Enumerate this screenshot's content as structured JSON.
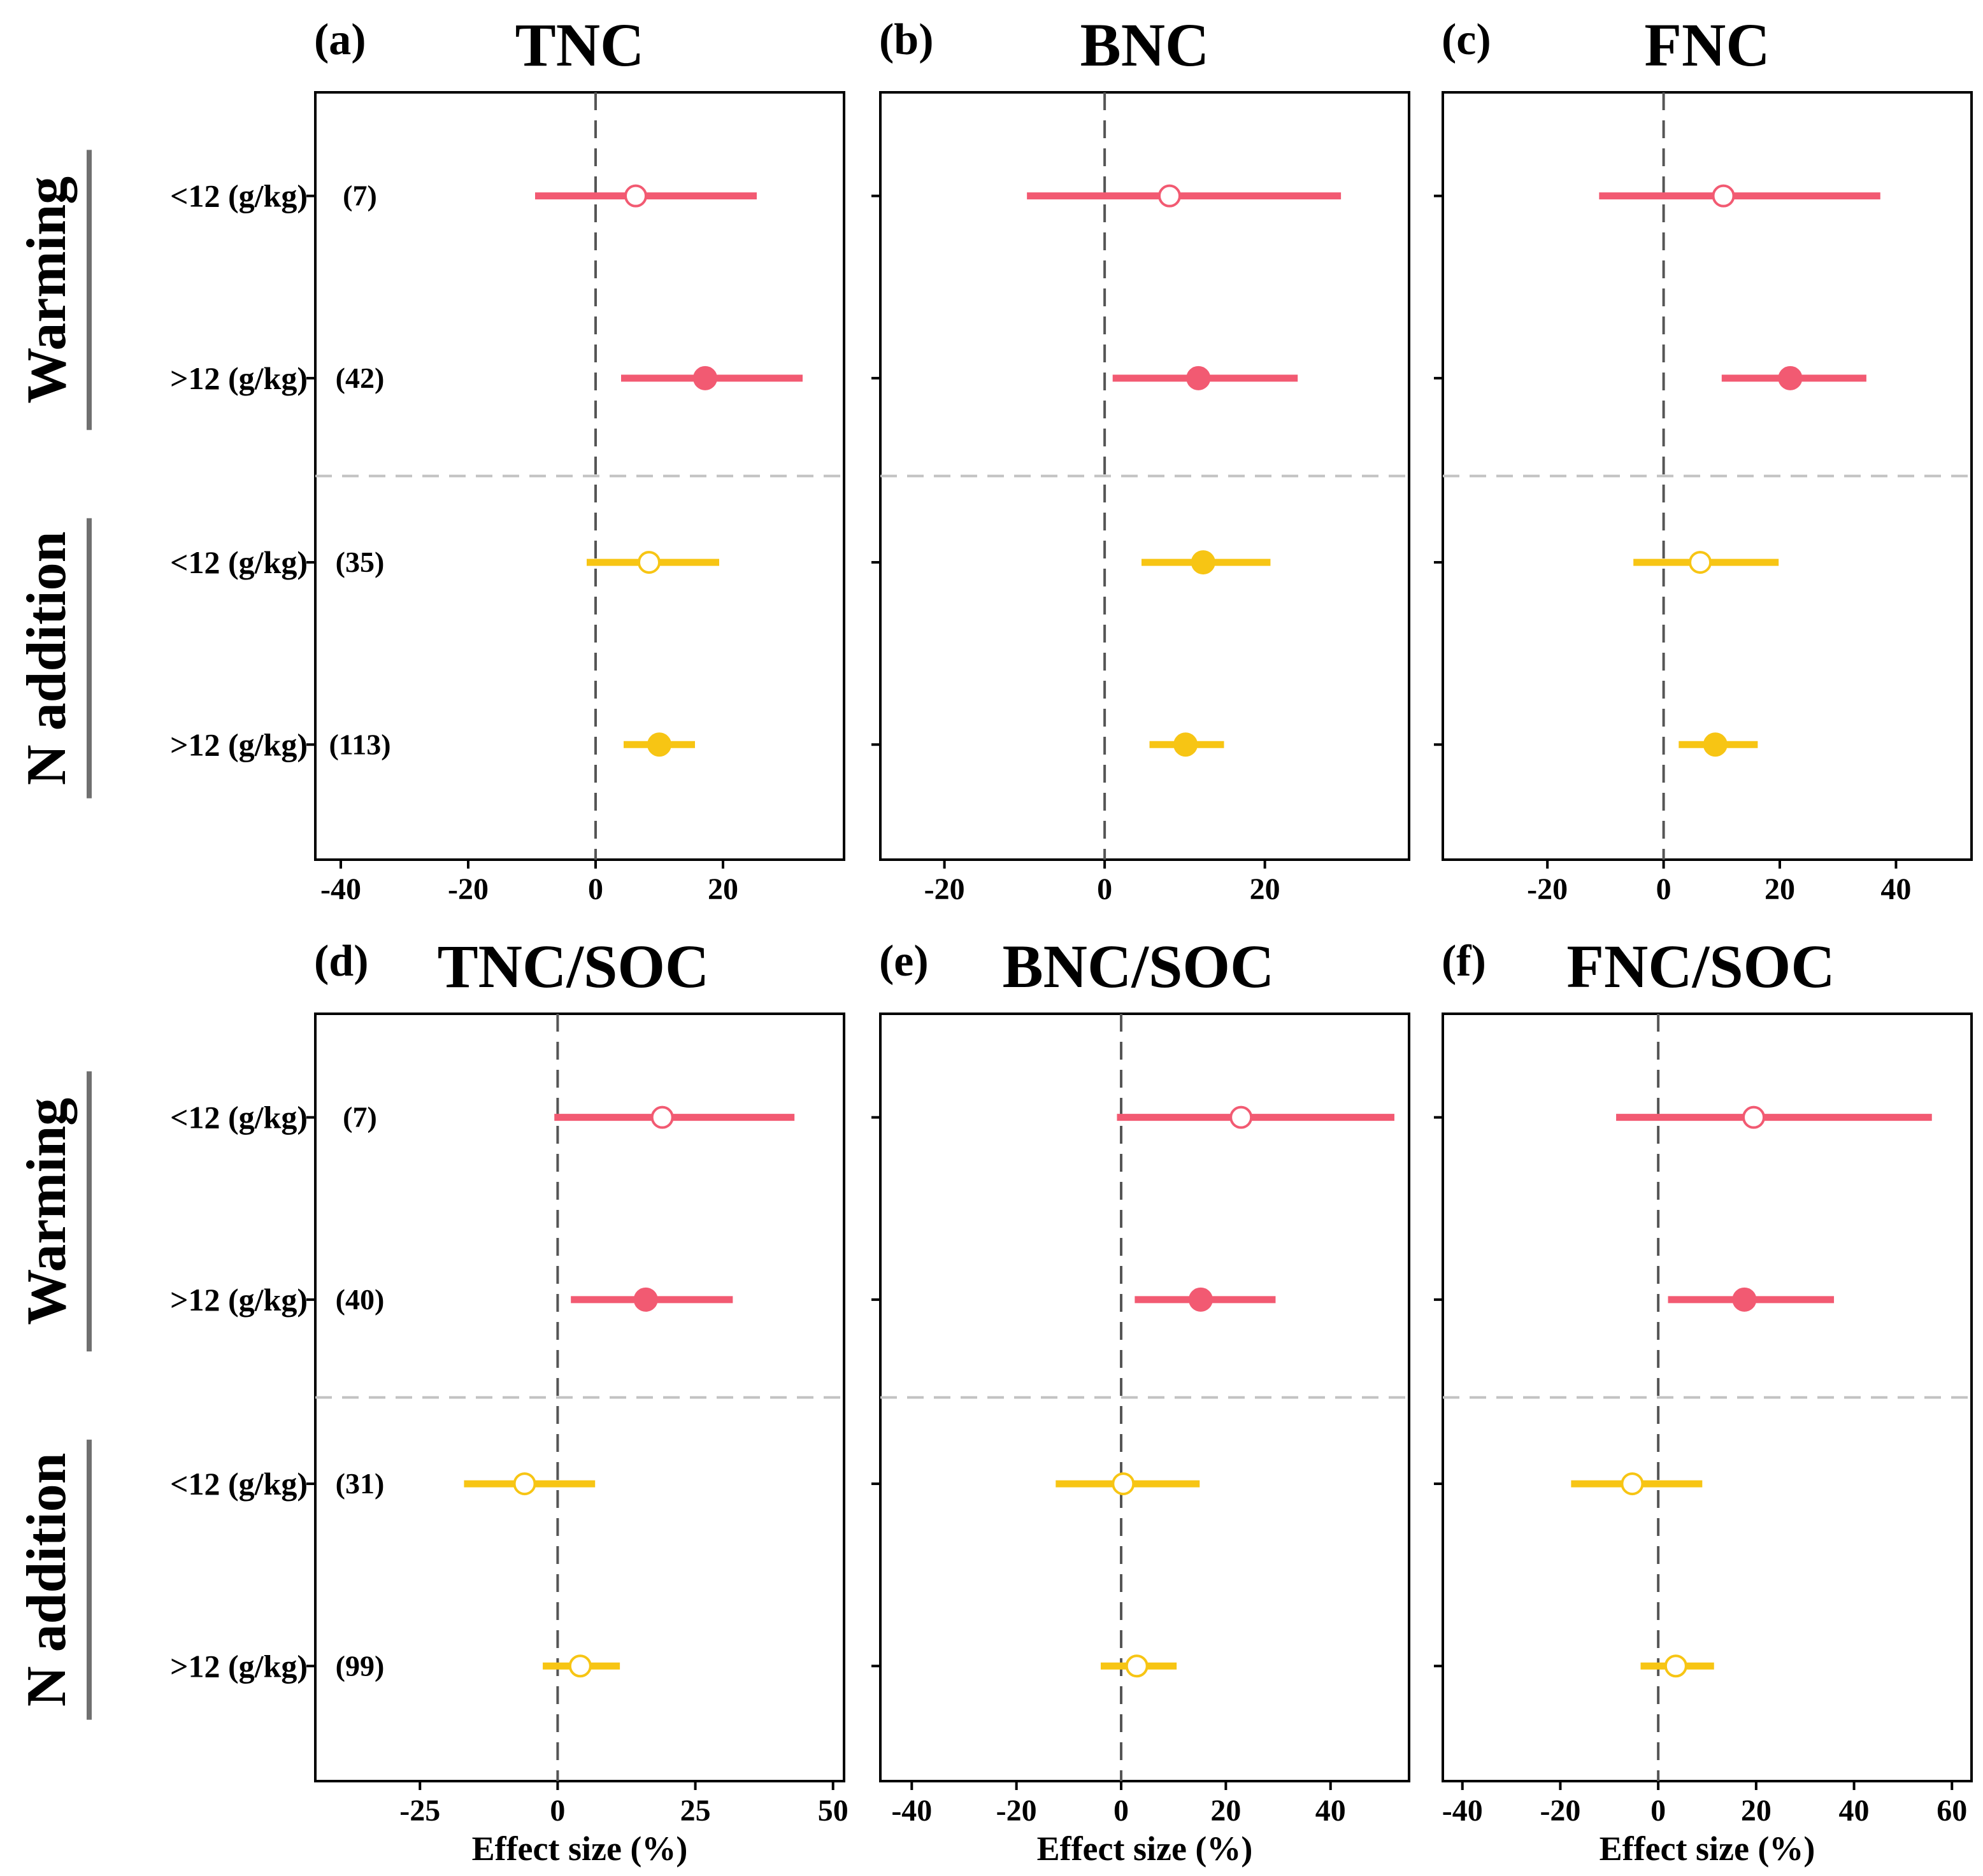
{
  "colors": {
    "warming": "#f25a72",
    "n_addition": "#f7c514",
    "axis": "#000000",
    "zero_line": "#555555",
    "divider": "#c2c2c2",
    "group_bar": "#707070"
  },
  "row_labels": [
    "<12 (g/kg)",
    ">12 (g/kg)",
    "<12 (g/kg)",
    ">12 (g/kg)"
  ],
  "groups": [
    {
      "label": "Warming",
      "color_key": "warming"
    },
    {
      "label": "N addition",
      "color_key": "n_addition"
    }
  ],
  "x_axis_title": "Effect size (%)",
  "chart_data": [
    {
      "type": "forest",
      "letter": "(a)",
      "title": "TNC",
      "xlim": [
        -44,
        39
      ],
      "ticks": [
        -40,
        -20,
        0,
        20
      ],
      "show_xlabel": false,
      "points": [
        {
          "group": "Warming",
          "label": "<12 (g/kg)",
          "n": "(7)",
          "mean": 6.3,
          "lo": -9.5,
          "hi": 25.3,
          "significant": false
        },
        {
          "group": "Warming",
          "label": ">12 (g/kg)",
          "n": "(42)",
          "mean": 17.2,
          "lo": 4.0,
          "hi": 32.5,
          "significant": true
        },
        {
          "group": "N addition",
          "label": "<12 (g/kg)",
          "n": "(35)",
          "mean": 8.4,
          "lo": -1.4,
          "hi": 19.4,
          "significant": false
        },
        {
          "group": "N addition",
          "label": ">12 (g/kg)",
          "n": "(113)",
          "mean": 10.0,
          "lo": 4.4,
          "hi": 15.6,
          "significant": true
        }
      ]
    },
    {
      "type": "forest",
      "letter": "(b)",
      "title": "BNC",
      "xlim": [
        -28,
        38
      ],
      "ticks": [
        -20,
        0,
        20
      ],
      "show_xlabel": false,
      "points": [
        {
          "group": "Warming",
          "label": "<12 (g/kg)",
          "n": "",
          "mean": 8.1,
          "lo": -9.7,
          "hi": 29.5,
          "significant": false
        },
        {
          "group": "Warming",
          "label": ">12 (g/kg)",
          "n": "",
          "mean": 11.7,
          "lo": 1.0,
          "hi": 24.1,
          "significant": true
        },
        {
          "group": "N addition",
          "label": "<12 (g/kg)",
          "n": "",
          "mean": 12.3,
          "lo": 4.6,
          "hi": 20.7,
          "significant": true
        },
        {
          "group": "N addition",
          "label": ">12 (g/kg)",
          "n": "",
          "mean": 10.1,
          "lo": 5.6,
          "hi": 14.9,
          "significant": true
        }
      ]
    },
    {
      "type": "forest",
      "letter": "(c)",
      "title": "FNC",
      "xlim": [
        -38,
        53
      ],
      "ticks": [
        -20,
        0,
        20,
        40
      ],
      "show_xlabel": false,
      "points": [
        {
          "group": "Warming",
          "label": "<12 (g/kg)",
          "n": "",
          "mean": 10.3,
          "lo": -11.1,
          "hi": 37.3,
          "significant": false
        },
        {
          "group": "Warming",
          "label": ">12 (g/kg)",
          "n": "",
          "mean": 21.8,
          "lo": 10.0,
          "hi": 34.9,
          "significant": true
        },
        {
          "group": "N addition",
          "label": "<12 (g/kg)",
          "n": "",
          "mean": 6.3,
          "lo": -5.2,
          "hi": 19.8,
          "significant": false
        },
        {
          "group": "N addition",
          "label": ">12 (g/kg)",
          "n": "",
          "mean": 8.9,
          "lo": 2.6,
          "hi": 16.2,
          "significant": true
        }
      ]
    },
    {
      "type": "forest",
      "letter": "(d)",
      "title": "TNC/SOC",
      "xlim": [
        -44,
        52
      ],
      "ticks": [
        -25,
        0,
        25,
        50
      ],
      "show_xlabel": true,
      "points": [
        {
          "group": "Warming",
          "label": "<12 (g/kg)",
          "n": "(7)",
          "mean": 19.0,
          "lo": -0.6,
          "hi": 43.0,
          "significant": false
        },
        {
          "group": "Warming",
          "label": ">12 (g/kg)",
          "n": "(40)",
          "mean": 16.0,
          "lo": 2.4,
          "hi": 31.8,
          "significant": true
        },
        {
          "group": "N addition",
          "label": "<12 (g/kg)",
          "n": "(31)",
          "mean": -6.0,
          "lo": -17.0,
          "hi": 6.8,
          "significant": false
        },
        {
          "group": "N addition",
          "label": ">12 (g/kg)",
          "n": "(99)",
          "mean": 4.1,
          "lo": -2.7,
          "hi": 11.3,
          "significant": false
        }
      ]
    },
    {
      "type": "forest",
      "letter": "(e)",
      "title": "BNC/SOC",
      "xlim": [
        -46,
        55
      ],
      "ticks": [
        -40,
        -20,
        0,
        20,
        40
      ],
      "show_xlabel": true,
      "points": [
        {
          "group": "Warming",
          "label": "<12 (g/kg)",
          "n": "",
          "mean": 22.9,
          "lo": -0.8,
          "hi": 52.2,
          "significant": false
        },
        {
          "group": "Warming",
          "label": ">12 (g/kg)",
          "n": "",
          "mean": 15.2,
          "lo": 2.6,
          "hi": 29.5,
          "significant": true
        },
        {
          "group": "N addition",
          "label": "<12 (g/kg)",
          "n": "",
          "mean": 0.4,
          "lo": -12.5,
          "hi": 15.0,
          "significant": false
        },
        {
          "group": "N addition",
          "label": ">12 (g/kg)",
          "n": "",
          "mean": 3.0,
          "lo": -3.9,
          "hi": 10.6,
          "significant": false
        }
      ]
    },
    {
      "type": "forest",
      "letter": "(f)",
      "title": "FNC/SOC",
      "xlim": [
        -44,
        64
      ],
      "ticks": [
        -40,
        -20,
        0,
        20,
        40,
        60
      ],
      "show_xlabel": true,
      "points": [
        {
          "group": "Warming",
          "label": "<12 (g/kg)",
          "n": "",
          "mean": 19.5,
          "lo": -8.6,
          "hi": 55.9,
          "significant": false
        },
        {
          "group": "Warming",
          "label": ">12 (g/kg)",
          "n": "",
          "mean": 17.6,
          "lo": 2.0,
          "hi": 35.9,
          "significant": true
        },
        {
          "group": "N addition",
          "label": "<12 (g/kg)",
          "n": "",
          "mean": -5.3,
          "lo": -17.8,
          "hi": 9.0,
          "significant": false
        },
        {
          "group": "N addition",
          "label": ">12 (g/kg)",
          "n": "",
          "mean": 3.6,
          "lo": -3.6,
          "hi": 11.4,
          "significant": false
        }
      ]
    }
  ]
}
